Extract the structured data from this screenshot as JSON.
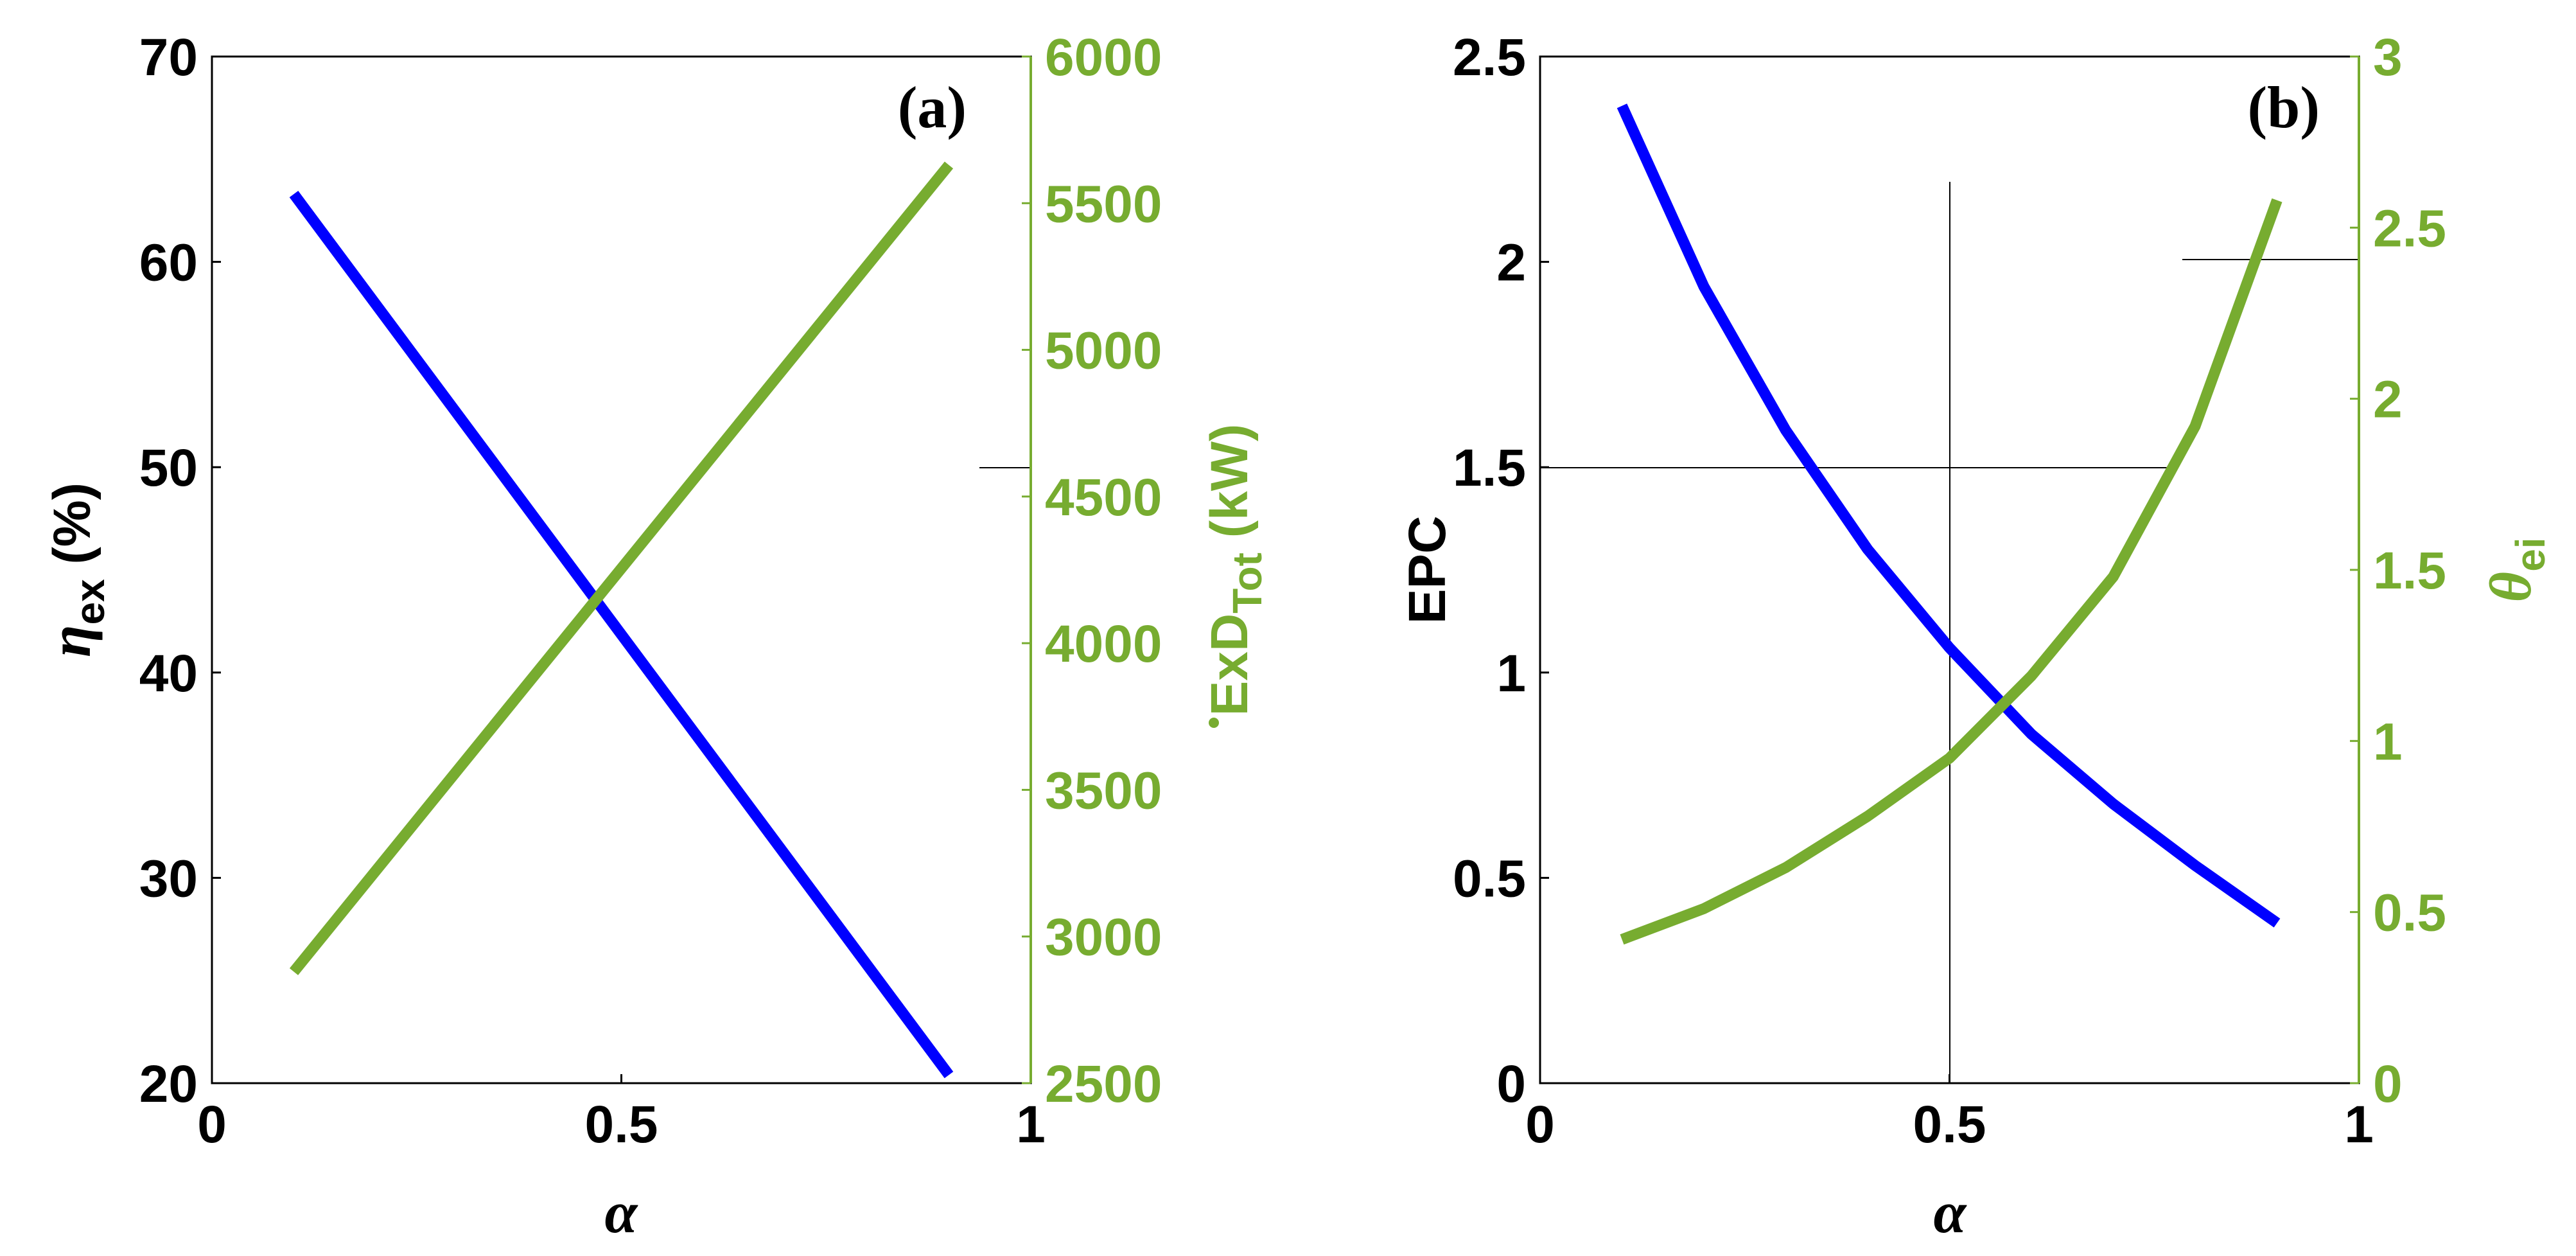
{
  "chart_data": [
    {
      "type": "line",
      "panel_label": "(a)",
      "x": [
        0.1,
        0.9
      ],
      "xlim": [
        0,
        1
      ],
      "xticks": [
        "0",
        "0.5",
        "1"
      ],
      "xlabel": "α",
      "left_axis": {
        "label_symbol": "η",
        "label_sub": "ex",
        "label_rest": " (%)",
        "ylim": [
          20,
          70
        ],
        "ticks": [
          "20",
          "30",
          "40",
          "50",
          "60",
          "70"
        ]
      },
      "right_axis": {
        "label_main": "ExD",
        "label_sub": "Tot",
        "label_rest": " (kW)",
        "ylim": [
          2500,
          6000
        ],
        "ticks": [
          "2500",
          "3000",
          "3500",
          "4000",
          "4500",
          "5000",
          "5500",
          "6000"
        ]
      },
      "series": [
        {
          "name": "η_ex",
          "axis": "left",
          "x": [
            0.1,
            0.9
          ],
          "values": [
            63.3,
            20.4
          ]
        },
        {
          "name": "ExD_Tot",
          "axis": "right",
          "x": [
            0.1,
            0.9
          ],
          "values": [
            2880,
            5630
          ]
        }
      ]
    },
    {
      "type": "line",
      "panel_label": "(b)",
      "x": [
        0.1,
        0.2,
        0.3,
        0.4,
        0.5,
        0.6,
        0.7,
        0.8,
        0.9
      ],
      "xlim": [
        0,
        1
      ],
      "xticks": [
        "0",
        "0.5",
        "1"
      ],
      "xlabel": "α",
      "left_axis": {
        "label_main": "EPC",
        "ylim": [
          0,
          2.5
        ],
        "ticks": [
          "0",
          "0.5",
          "1",
          "1.5",
          "2",
          "2.5"
        ]
      },
      "right_axis": {
        "label_symbol": "θ",
        "label_sub": "ei",
        "ylim": [
          0,
          3
        ],
        "ticks": [
          "0",
          "0.5",
          "1",
          "1.5",
          "2",
          "2.5",
          "3"
        ]
      },
      "series": [
        {
          "name": "EPC",
          "axis": "left",
          "x": [
            0.1,
            0.2,
            0.3,
            0.4,
            0.5,
            0.6,
            0.7,
            0.8,
            0.9
          ],
          "values": [
            2.38,
            1.94,
            1.59,
            1.3,
            1.06,
            0.85,
            0.68,
            0.53,
            0.39
          ]
        },
        {
          "name": "θ_ei",
          "axis": "right",
          "x": [
            0.1,
            0.2,
            0.3,
            0.4,
            0.5,
            0.6,
            0.7,
            0.8,
            0.9
          ],
          "values": [
            0.42,
            0.51,
            0.63,
            0.78,
            0.95,
            1.19,
            1.48,
            1.92,
            2.58
          ]
        }
      ]
    }
  ],
  "colors": {
    "left_series": "#0000ff",
    "right_series": "#77ac30",
    "axis": "#000000"
  }
}
